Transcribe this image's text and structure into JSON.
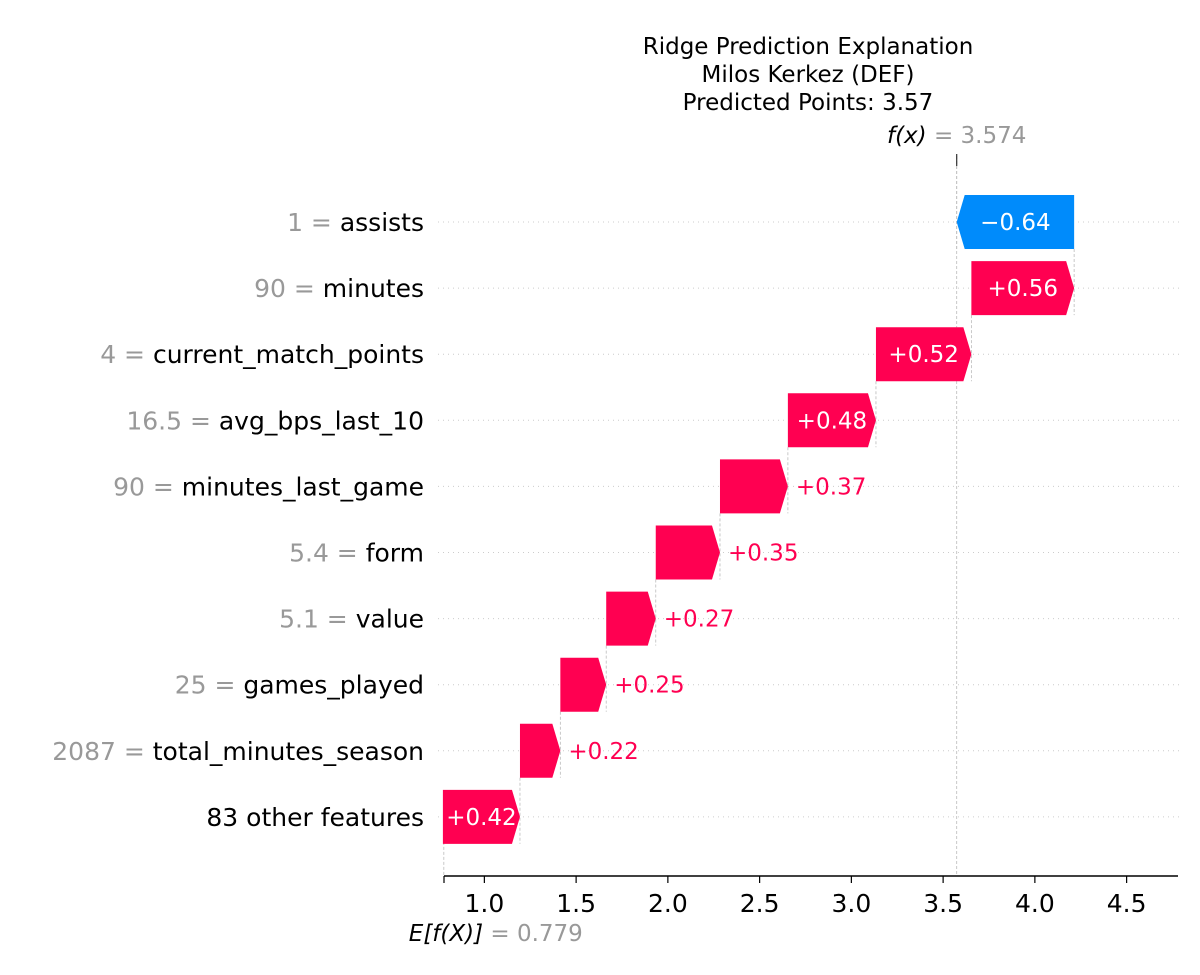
{
  "chart_data": {
    "type": "waterfall",
    "title_lines": [
      "Ridge Prediction Explanation",
      "Milos Kerkez (DEF)",
      "Predicted Points: 3.57"
    ],
    "base_value": 0.779,
    "base_label": "E[f(X)]",
    "base_value_text": "0.779",
    "output_value": 3.574,
    "output_label": "f(x)",
    "output_value_text": "3.574",
    "xlim": [
      0.78,
      4.78
    ],
    "x_ticks": [
      1.0,
      1.5,
      2.0,
      2.5,
      3.0,
      3.5,
      4.0,
      4.5
    ],
    "x_tick_labels": [
      "1.0",
      "1.5",
      "2.0",
      "2.5",
      "3.0",
      "3.5",
      "4.0",
      "4.5"
    ],
    "colors": {
      "positive": "#ff0051",
      "negative": "#008bfb",
      "value_text": "#999999"
    },
    "features": [
      {
        "value": "1",
        "name": "assists",
        "contribution": -0.64,
        "label": "−0.64"
      },
      {
        "value": "90",
        "name": "minutes",
        "contribution": 0.56,
        "label": "+0.56"
      },
      {
        "value": "4",
        "name": "current_match_points",
        "contribution": 0.52,
        "label": "+0.52"
      },
      {
        "value": "16.5",
        "name": "avg_bps_last_10",
        "contribution": 0.48,
        "label": "+0.48"
      },
      {
        "value": "90",
        "name": "minutes_last_game",
        "contribution": 0.37,
        "label": "+0.37"
      },
      {
        "value": "5.4",
        "name": "form",
        "contribution": 0.35,
        "label": "+0.35"
      },
      {
        "value": "5.1",
        "name": "value",
        "contribution": 0.27,
        "label": "+0.27"
      },
      {
        "value": "25",
        "name": "games_played",
        "contribution": 0.25,
        "label": "+0.25"
      },
      {
        "value": "2087",
        "name": "total_minutes_season",
        "contribution": 0.22,
        "label": "+0.22"
      },
      {
        "value": "",
        "name": "83 other features",
        "contribution": 0.42,
        "label": "+0.42"
      }
    ]
  }
}
